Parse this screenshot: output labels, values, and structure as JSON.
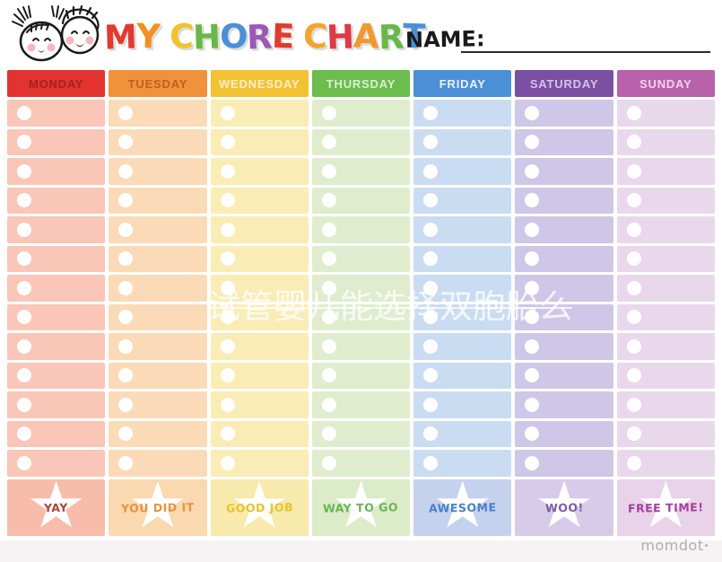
{
  "header": {
    "title": "MY CHORE CHART",
    "title_letters": [
      {
        "ch": "M",
        "color": "#e23a2e"
      },
      {
        "ch": "Y",
        "color": "#f29022"
      },
      {
        "ch": " ",
        "color": ""
      },
      {
        "ch": "C",
        "color": "#f2c12e"
      },
      {
        "ch": "H",
        "color": "#67b846"
      },
      {
        "ch": "O",
        "color": "#4a90d9"
      },
      {
        "ch": "R",
        "color": "#9b59b6"
      },
      {
        "ch": "E",
        "color": "#e23a2e"
      },
      {
        "ch": " ",
        "color": ""
      },
      {
        "ch": "C",
        "color": "#f3a42c"
      },
      {
        "ch": "H",
        "color": "#dd3b45"
      },
      {
        "ch": "A",
        "color": "#f0982d"
      },
      {
        "ch": "R",
        "color": "#67b846"
      },
      {
        "ch": "T",
        "color": "#4a90d9"
      }
    ],
    "name_label": "NAME:",
    "name_value": ""
  },
  "table": {
    "rows_per_day": 13,
    "circle_color": "#ffffff",
    "star_color": "#ffffff",
    "days": [
      {
        "label": "MONDAY",
        "header_bg": "#e23330",
        "header_fg": "#9e241f",
        "row_bg": "#f9c6b7",
        "foot_bg": "#f8bcab",
        "foot_label": "YAY",
        "foot_fg": "#a9453b"
      },
      {
        "label": "TUESDAY",
        "header_bg": "#f0913b",
        "header_fg": "#bf5f21",
        "row_bg": "#fbdbb7",
        "foot_bg": "#fad8b0",
        "foot_label": "YOU DID IT",
        "foot_fg": "#e5943c"
      },
      {
        "label": "WEDNESDAY",
        "header_bg": "#f2c233",
        "header_fg": "#faefc9",
        "row_bg": "#f9ecb5",
        "foot_bg": "#f8e9ac",
        "foot_label": "GOOD JOB",
        "foot_fg": "#e7c32a"
      },
      {
        "label": "THURSDAY",
        "header_bg": "#6cbc4e",
        "header_fg": "#dcefd1",
        "row_bg": "#dfedce",
        "foot_bg": "#dcebc8",
        "foot_label": "WAY TO GO",
        "foot_fg": "#67b557"
      },
      {
        "label": "FRIDAY",
        "header_bg": "#4b90d7",
        "header_fg": "#e9f2fc",
        "row_bg": "#cadcf1",
        "foot_bg": "#c4d2ed",
        "foot_label": "AWESOME",
        "foot_fg": "#4a7fc9"
      },
      {
        "label": "SATURDAY",
        "header_bg": "#7b4fa2",
        "header_fg": "#d5c3e8",
        "row_bg": "#cfc7e7",
        "foot_bg": "#d7cbe9",
        "foot_label": "WOO!",
        "foot_fg": "#7b5ba6"
      },
      {
        "label": "SUNDAY",
        "header_bg": "#b762aa",
        "header_fg": "#f2d4ec",
        "row_bg": "#e9d8ec",
        "foot_bg": "#e9d3e9",
        "foot_label": "FREE TIME!",
        "foot_fg": "#a43f9f"
      }
    ]
  },
  "watermark": {
    "text": "试管婴儿能选择双胞胎么",
    "color": "rgba(255,255,255,0.78)"
  },
  "brand": {
    "text": "momdot",
    "dot": "•"
  }
}
